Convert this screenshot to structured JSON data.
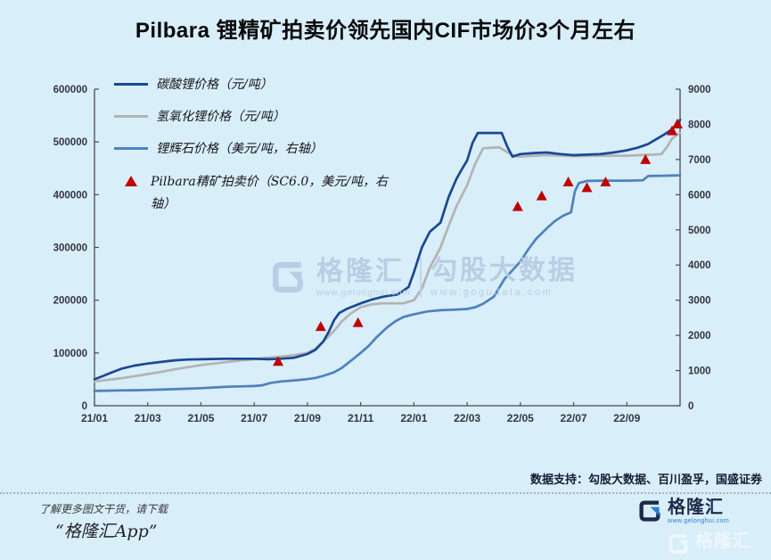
{
  "title": "Pilbara 锂精矿拍卖价领先国内CIF市场价3个月左右",
  "legend": {
    "items": [
      {
        "label": "碳酸锂价格（元/吨）",
        "color": "#1a4896",
        "marker": "line"
      },
      {
        "label": "氢氧化锂价格（元/吨）",
        "color": "#b3b3b3",
        "marker": "line"
      },
      {
        "label": "锂辉石价格（美元/吨，右轴）",
        "color": "#4e81bd",
        "marker": "line"
      },
      {
        "label": "Pilbara精矿拍卖价（SC6.0，美元/吨，右轴）",
        "color": "#c00000",
        "marker": "triangle"
      }
    ]
  },
  "chart_data": {
    "type": "line",
    "title": "Pilbara 锂精矿拍卖价领先国内CIF市场价3个月左右",
    "x_unit": "months since 2021-01",
    "x_range_months": [
      0,
      22
    ],
    "x_axis": {
      "tick_labels": [
        "21/01",
        "21/03",
        "21/05",
        "21/07",
        "21/09",
        "21/11",
        "22/01",
        "22/03",
        "22/05",
        "22/07",
        "22/09"
      ],
      "months_per_label": 2
    },
    "left_axis": {
      "min": 0,
      "max": 600000,
      "step": 100000,
      "tick_labels": [
        "0",
        "100000",
        "200000",
        "300000",
        "400000",
        "500000",
        "600000"
      ]
    },
    "right_axis": {
      "min": 0,
      "max": 9000,
      "step": 1000,
      "tick_labels": [
        "0",
        "1000",
        "2000",
        "3000",
        "4000",
        "5000",
        "6000",
        "7000",
        "8000",
        "9000"
      ]
    },
    "series": [
      {
        "name": "碳酸锂价格（元/吨）",
        "axis": "left",
        "color": "#1a4896",
        "points": [
          [
            0,
            50000
          ],
          [
            0.3,
            56000
          ],
          [
            0.6,
            62000
          ],
          [
            1,
            70000
          ],
          [
            1.5,
            76000
          ],
          [
            2,
            80000
          ],
          [
            2.5,
            83000
          ],
          [
            3,
            86000
          ],
          [
            3.5,
            87500
          ],
          [
            4,
            88000
          ],
          [
            5,
            89000
          ],
          [
            6,
            89000
          ],
          [
            6.5,
            88000
          ],
          [
            7,
            89000
          ],
          [
            7.5,
            91000
          ],
          [
            8,
            98000
          ],
          [
            8.3,
            106000
          ],
          [
            8.6,
            122000
          ],
          [
            8.8,
            140000
          ],
          [
            9,
            162000
          ],
          [
            9.2,
            176000
          ],
          [
            9.5,
            184000
          ],
          [
            10,
            194000
          ],
          [
            10.4,
            201000
          ],
          [
            10.8,
            206000
          ],
          [
            11,
            208000
          ],
          [
            11.4,
            211000
          ],
          [
            11.8,
            225000
          ],
          [
            12,
            253000
          ],
          [
            12.3,
            300000
          ],
          [
            12.6,
            330000
          ],
          [
            13,
            347000
          ],
          [
            13.3,
            395000
          ],
          [
            13.6,
            430000
          ],
          [
            13.8,
            448000
          ],
          [
            14,
            465000
          ],
          [
            14.2,
            498000
          ],
          [
            14.4,
            517000
          ],
          [
            15.3,
            517000
          ],
          [
            15.5,
            492000
          ],
          [
            15.7,
            472000
          ],
          [
            16,
            477000
          ],
          [
            16.5,
            479000
          ],
          [
            17,
            480000
          ],
          [
            17.5,
            477000
          ],
          [
            18,
            475000
          ],
          [
            18.5,
            476000
          ],
          [
            19,
            477000
          ],
          [
            19.5,
            480000
          ],
          [
            20,
            484000
          ],
          [
            20.4,
            489000
          ],
          [
            20.8,
            496000
          ],
          [
            21.1,
            505000
          ],
          [
            21.4,
            514000
          ],
          [
            21.7,
            524000
          ],
          [
            21.9,
            533000
          ],
          [
            22,
            542000
          ]
        ]
      },
      {
        "name": "氢氧化锂价格（元/吨）",
        "axis": "left",
        "color": "#b3b3b3",
        "points": [
          [
            0,
            46000
          ],
          [
            0.5,
            49000
          ],
          [
            1,
            52000
          ],
          [
            1.5,
            56000
          ],
          [
            2,
            60000
          ],
          [
            2.5,
            64000
          ],
          [
            3,
            69000
          ],
          [
            3.5,
            73000
          ],
          [
            4,
            77000
          ],
          [
            4.5,
            80000
          ],
          [
            5,
            83000
          ],
          [
            5.5,
            86000
          ],
          [
            6,
            88000
          ],
          [
            6.5,
            91000
          ],
          [
            7,
            93000
          ],
          [
            7.5,
            96000
          ],
          [
            8,
            100000
          ],
          [
            8.3,
            108000
          ],
          [
            8.6,
            122000
          ],
          [
            9,
            142000
          ],
          [
            9.3,
            160000
          ],
          [
            9.6,
            174000
          ],
          [
            10,
            187000
          ],
          [
            10.4,
            192000
          ],
          [
            10.8,
            194000
          ],
          [
            11.6,
            194000
          ],
          [
            12,
            200000
          ],
          [
            12.3,
            222000
          ],
          [
            12.6,
            262000
          ],
          [
            13,
            300000
          ],
          [
            13.3,
            340000
          ],
          [
            13.6,
            378000
          ],
          [
            14,
            418000
          ],
          [
            14.3,
            458000
          ],
          [
            14.6,
            488000
          ],
          [
            15.2,
            490000
          ],
          [
            15.5,
            481000
          ],
          [
            15.8,
            473000
          ],
          [
            16,
            472000
          ],
          [
            16.5,
            474000
          ],
          [
            17,
            475000
          ],
          [
            18,
            473000
          ],
          [
            19,
            474000
          ],
          [
            20,
            474000
          ],
          [
            20.5,
            475000
          ],
          [
            21,
            476000
          ],
          [
            21.3,
            477000
          ],
          [
            21.5,
            490000
          ],
          [
            21.7,
            506000
          ],
          [
            21.9,
            514000
          ],
          [
            22,
            517000
          ]
        ]
      },
      {
        "name": "锂辉石价格（美元/吨，右轴）",
        "axis": "right",
        "color": "#4e81bd",
        "points": [
          [
            0,
            420
          ],
          [
            0.5,
            428
          ],
          [
            1,
            435
          ],
          [
            1.5,
            442
          ],
          [
            2,
            450
          ],
          [
            2.5,
            460
          ],
          [
            3,
            472
          ],
          [
            3.5,
            485
          ],
          [
            4,
            500
          ],
          [
            4.5,
            520
          ],
          [
            5,
            540
          ],
          [
            5.5,
            550
          ],
          [
            6,
            560
          ],
          [
            6.3,
            580
          ],
          [
            6.6,
            645
          ],
          [
            7,
            690
          ],
          [
            7.5,
            720
          ],
          [
            8,
            755
          ],
          [
            8.3,
            790
          ],
          [
            8.6,
            850
          ],
          [
            9,
            950
          ],
          [
            9.3,
            1080
          ],
          [
            9.6,
            1260
          ],
          [
            10,
            1500
          ],
          [
            10.3,
            1700
          ],
          [
            10.6,
            1950
          ],
          [
            11,
            2230
          ],
          [
            11.3,
            2400
          ],
          [
            11.6,
            2520
          ],
          [
            12,
            2600
          ],
          [
            12.5,
            2680
          ],
          [
            13,
            2715
          ],
          [
            13.5,
            2730
          ],
          [
            14,
            2750
          ],
          [
            14.3,
            2800
          ],
          [
            14.6,
            2900
          ],
          [
            15,
            3100
          ],
          [
            15.2,
            3350
          ],
          [
            15.4,
            3600
          ],
          [
            15.7,
            3850
          ],
          [
            16,
            4100
          ],
          [
            16.3,
            4450
          ],
          [
            16.6,
            4750
          ],
          [
            17,
            5050
          ],
          [
            17.3,
            5250
          ],
          [
            17.6,
            5400
          ],
          [
            17.9,
            5500
          ],
          [
            18.05,
            6100
          ],
          [
            18.2,
            6330
          ],
          [
            18.5,
            6390
          ],
          [
            19,
            6400
          ],
          [
            20,
            6400
          ],
          [
            20.6,
            6410
          ],
          [
            20.8,
            6530
          ],
          [
            21.5,
            6540
          ],
          [
            22,
            6550
          ]
        ]
      }
    ],
    "scatter": [
      {
        "name": "Pilbara精矿拍卖价（SC6.0，美元/吨，右轴）",
        "axis": "right",
        "color": "#c00000",
        "marker": "triangle",
        "points": [
          [
            6.9,
            1250
          ],
          [
            8.5,
            2240
          ],
          [
            9.9,
            2350
          ],
          [
            15.9,
            5650
          ],
          [
            16.8,
            5955
          ],
          [
            17.8,
            6350
          ],
          [
            18.5,
            6188
          ],
          [
            19.2,
            6350
          ],
          [
            20.7,
            6988
          ],
          [
            21.7,
            7805
          ],
          [
            21.9,
            8000
          ]
        ]
      }
    ],
    "grid": false,
    "legend_position": "top-left"
  },
  "watermark": {
    "brand": "格隆汇",
    "brand_url": "www.gelonghui.com",
    "data_brand": "勾股大数据",
    "data_url": "www.gogudata.com"
  },
  "footer": {
    "data_support": "数据支持：勾股大数据、百川盈孚，国盛证券",
    "promo_line1": "了解更多图文干货，请下载",
    "promo_line2": "“格隆汇App”",
    "logo_text": "格隆汇",
    "logo_url": "www.gelonghui.com"
  }
}
